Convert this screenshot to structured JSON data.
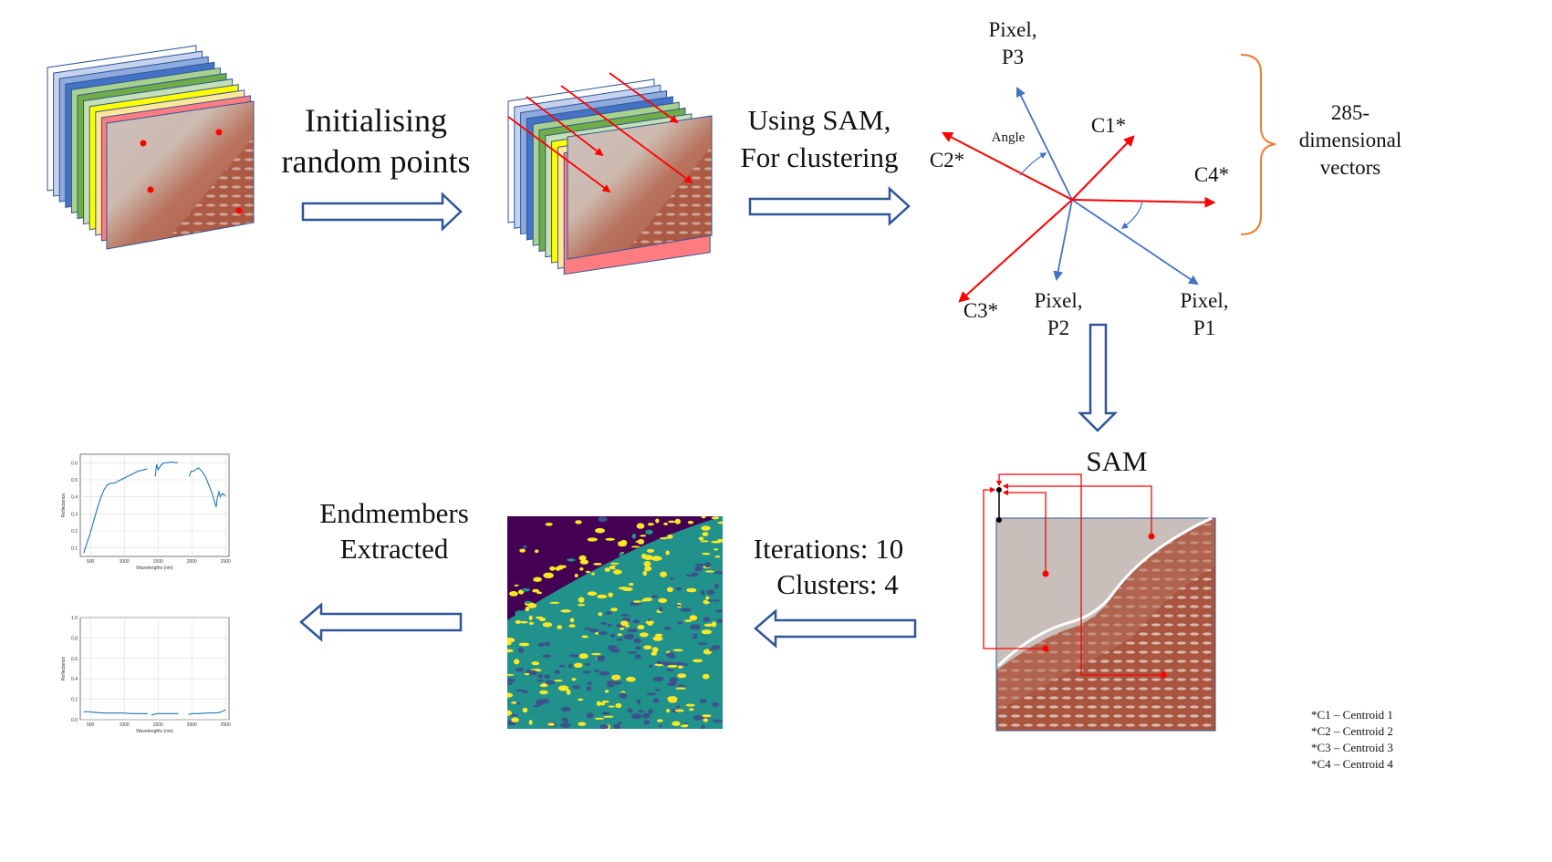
{
  "labels": {
    "init_line1": "Initialising",
    "init_line2": "random points",
    "sam_line1": "Using  SAM,",
    "sam_line2": "For clustering",
    "pixel_p3_line1": "Pixel,",
    "pixel_p3_line2": "P3",
    "pixel_p2_line1": "Pixel,",
    "pixel_p2_line2": "P2",
    "pixel_p1_line1": "Pixel,",
    "pixel_p1_line2": "P1",
    "angle": "Angle",
    "c1": "C1*",
    "c2": "C2*",
    "c3": "C3*",
    "c4": "C4*",
    "dim_line1": "285-",
    "dim_line2": "dimensional",
    "dim_line3": "vectors",
    "sam_title": "SAM",
    "iterations": "Iterations:  10",
    "clusters": "Clusters:  4",
    "endmembers_line1": "Endmembers",
    "endmembers_line2": "Extracted"
  },
  "legend": [
    "*C1 – Centroid 1",
    "*C2 – Centroid 2",
    "*C3 – Centroid 3",
    "*C4 – Centroid 4"
  ],
  "colors": {
    "arrow_outline": "#2f5597",
    "vector_red": "#ff0000",
    "vector_blue": "#4472c4",
    "brace": "#ed7d31",
    "spectrum": "#1f77b4",
    "cluster_bg": "#440154",
    "cluster_teal": "#21918c",
    "cluster_yellow": "#fde725"
  },
  "chart_data": [
    {
      "type": "line",
      "xlabel": "Wavelengths (nm)",
      "ylabel": "Reflectance",
      "xticks": [
        "500",
        "1000",
        "1500",
        "2000",
        "2500"
      ],
      "yticks": [
        "0.1",
        "0.2",
        "0.3",
        "0.4",
        "0.5",
        "0.6"
      ],
      "xlim": [
        350,
        2550
      ],
      "ylim": [
        0.05,
        0.65
      ],
      "series": [
        {
          "x": [
            400,
            450,
            500,
            550,
            600,
            650,
            700,
            750,
            800,
            850,
            900,
            950,
            1000,
            1050,
            1100,
            1150,
            1200,
            1250,
            1300,
            1340
          ],
          "y": [
            0.07,
            0.13,
            0.19,
            0.26,
            0.33,
            0.39,
            0.44,
            0.47,
            0.48,
            0.48,
            0.49,
            0.5,
            0.51,
            0.52,
            0.53,
            0.54,
            0.55,
            0.555,
            0.56,
            0.565
          ]
        },
        {
          "x": [
            1460,
            1480,
            1500,
            1520,
            1550,
            1600,
            1650,
            1700,
            1750,
            1790
          ],
          "y": [
            0.52,
            0.59,
            0.56,
            0.57,
            0.59,
            0.6,
            0.6,
            0.605,
            0.6,
            0.6
          ]
        },
        {
          "x": [
            1960,
            1990,
            2020,
            2060,
            2100,
            2150,
            2200,
            2250,
            2300,
            2330,
            2360,
            2380,
            2400,
            2420,
            2450,
            2480,
            2500
          ],
          "y": [
            0.52,
            0.55,
            0.55,
            0.56,
            0.57,
            0.55,
            0.52,
            0.47,
            0.42,
            0.38,
            0.34,
            0.4,
            0.43,
            0.4,
            0.42,
            0.41,
            0.41
          ]
        }
      ]
    },
    {
      "type": "line",
      "xlabel": "Wavelengths (nm)",
      "ylabel": "Reflectance",
      "xticks": [
        "500",
        "1000",
        "1500",
        "2000",
        "2500"
      ],
      "yticks": [
        "0.0",
        "0.2",
        "0.4",
        "0.6",
        "0.8",
        "1.0"
      ],
      "xlim": [
        350,
        2550
      ],
      "ylim": [
        0,
        1
      ],
      "series": [
        {
          "x": [
            400,
            450,
            500,
            600,
            700,
            800,
            900,
            1000,
            1100,
            1200,
            1300,
            1350
          ],
          "y": [
            0.075,
            0.08,
            0.075,
            0.07,
            0.065,
            0.065,
            0.065,
            0.065,
            0.06,
            0.06,
            0.06,
            0.06
          ]
        },
        {
          "x": [
            1400,
            1450,
            1500,
            1600,
            1700,
            1800
          ],
          "y": [
            0.045,
            0.055,
            0.06,
            0.06,
            0.06,
            0.06
          ]
        },
        {
          "x": [
            1950,
            2000,
            2100,
            2200,
            2300,
            2400,
            2450,
            2480,
            2500
          ],
          "y": [
            0.05,
            0.06,
            0.06,
            0.065,
            0.065,
            0.07,
            0.08,
            0.09,
            0.1
          ]
        }
      ]
    }
  ]
}
